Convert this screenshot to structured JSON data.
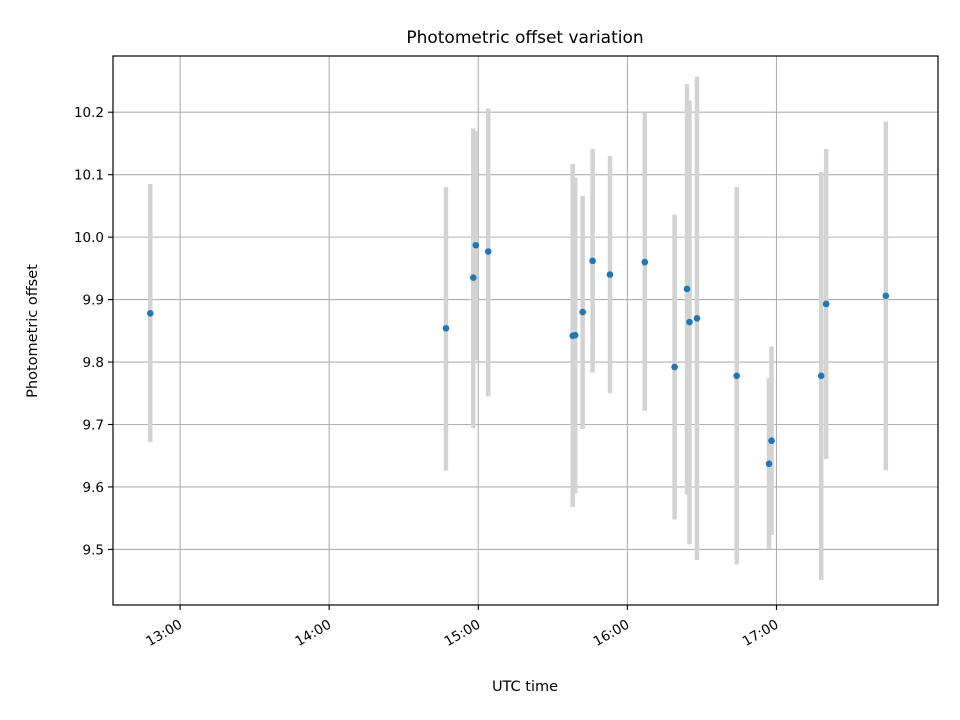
{
  "chart_data": {
    "type": "scatter",
    "title": "Photometric offset variation",
    "xlabel": "UTC time",
    "ylabel": "Photometric offset",
    "x_tick_labels": [
      "13:00",
      "14:00",
      "15:00",
      "16:00",
      "17:00"
    ],
    "y_tick_labels": [
      "9.5",
      "9.6",
      "9.7",
      "9.8",
      "9.9",
      "10.0",
      "10.1",
      "10.2"
    ],
    "xlim": [
      "12:33",
      "18:05"
    ],
    "ylim": [
      9.411,
      10.29
    ],
    "grid": true,
    "legend": "none",
    "colors": {
      "marker": "#1f77b4",
      "errorbar": "#d3d3d3",
      "grid": "#b0b0b0"
    },
    "points": [
      {
        "x": "12:48",
        "y": 9.878,
        "y_low": 9.672,
        "y_high": 10.085
      },
      {
        "x": "14:47",
        "y": 9.854,
        "y_low": 9.626,
        "y_high": 10.08
      },
      {
        "x": "14:58",
        "y": 9.935,
        "y_low": 9.694,
        "y_high": 10.174
      },
      {
        "x": "14:59",
        "y": 9.987,
        "y_low": 9.803,
        "y_high": 10.17
      },
      {
        "x": "15:04",
        "y": 9.977,
        "y_low": 9.745,
        "y_high": 10.206
      },
      {
        "x": "15:38",
        "y": 9.842,
        "y_low": 9.568,
        "y_high": 10.117
      },
      {
        "x": "15:39",
        "y": 9.843,
        "y_low": 9.59,
        "y_high": 10.095
      },
      {
        "x": "15:42",
        "y": 9.88,
        "y_low": 9.693,
        "y_high": 10.066
      },
      {
        "x": "15:46",
        "y": 9.962,
        "y_low": 9.783,
        "y_high": 10.141
      },
      {
        "x": "15:53",
        "y": 9.94,
        "y_low": 9.75,
        "y_high": 10.13
      },
      {
        "x": "16:07",
        "y": 9.96,
        "y_low": 9.722,
        "y_high": 10.199
      },
      {
        "x": "16:19",
        "y": 9.792,
        "y_low": 9.548,
        "y_high": 10.036
      },
      {
        "x": "16:24",
        "y": 9.917,
        "y_low": 9.588,
        "y_high": 10.245
      },
      {
        "x": "16:25",
        "y": 9.864,
        "y_low": 9.508,
        "y_high": 10.219
      },
      {
        "x": "16:28",
        "y": 9.87,
        "y_low": 9.483,
        "y_high": 10.257
      },
      {
        "x": "16:44",
        "y": 9.778,
        "y_low": 9.476,
        "y_high": 10.08
      },
      {
        "x": "16:57",
        "y": 9.637,
        "y_low": 9.5,
        "y_high": 9.774
      },
      {
        "x": "16:58",
        "y": 9.674,
        "y_low": 9.523,
        "y_high": 9.825
      },
      {
        "x": "17:18",
        "y": 9.778,
        "y_low": 9.451,
        "y_high": 10.104
      },
      {
        "x": "17:20",
        "y": 9.893,
        "y_low": 9.645,
        "y_high": 10.141
      },
      {
        "x": "17:44",
        "y": 9.906,
        "y_low": 9.627,
        "y_high": 10.185
      }
    ]
  }
}
